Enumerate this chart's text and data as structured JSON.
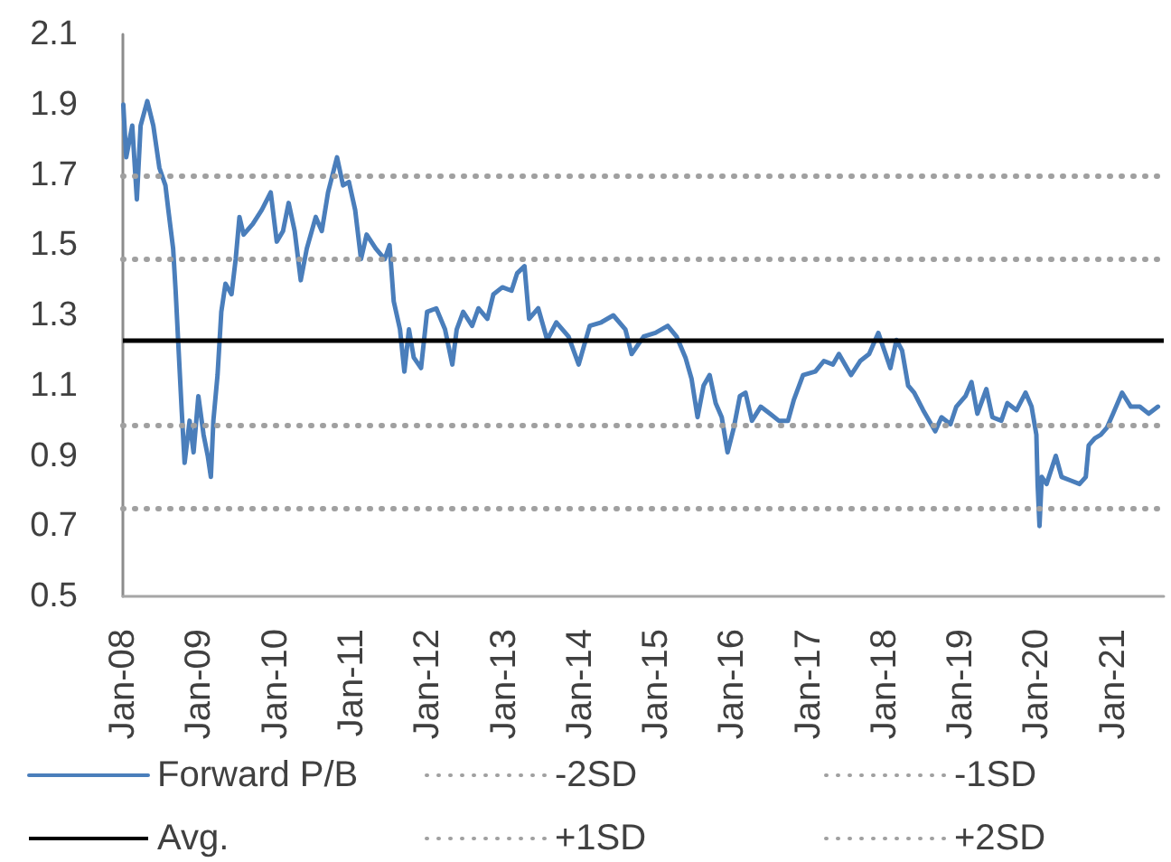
{
  "chart_data": {
    "type": "line",
    "x": [
      "2008-01-03",
      "2008-01-17",
      "2008-02-15",
      "2008-03-08",
      "2008-03-26",
      "2008-04-27",
      "2008-05-26",
      "2008-06-24",
      "2008-07-23",
      "2008-08-06",
      "2008-08-29",
      "2008-09-10",
      "2008-09-27",
      "2008-10-09",
      "2008-10-23",
      "2008-11-16",
      "2008-12-05",
      "2008-12-28",
      "2009-01-22",
      "2009-02-11",
      "2009-02-26",
      "2009-03-10",
      "2009-03-30",
      "2009-04-17",
      "2009-05-07",
      "2009-06-05",
      "2009-06-25",
      "2009-07-13",
      "2009-08-02",
      "2009-09-15",
      "2009-10-28",
      "2009-12-10",
      "2010-01-08",
      "2010-02-07",
      "2010-03-06",
      "2010-04-04",
      "2010-05-03",
      "2010-06-01",
      "2010-07-14",
      "2010-08-12",
      "2010-09-11",
      "2010-10-24",
      "2010-11-22",
      "2010-12-20",
      "2011-01-19",
      "2011-02-16",
      "2011-03-15",
      "2011-04-28",
      "2011-06-10",
      "2011-07-03",
      "2011-07-23",
      "2011-08-22",
      "2011-09-12",
      "2011-10-04",
      "2011-10-27",
      "2011-12-01",
      "2011-12-30",
      "2012-02-12",
      "2012-03-25",
      "2012-04-29",
      "2012-05-20",
      "2012-06-20",
      "2012-08-02",
      "2012-09-01",
      "2012-10-14",
      "2012-11-12",
      "2012-12-25",
      "2013-02-07",
      "2013-03-06",
      "2013-04-10",
      "2013-05-02",
      "2013-06-15",
      "2013-07-28",
      "2013-09-10",
      "2013-11-07",
      "2013-12-26",
      "2014-02-17",
      "2014-04-13",
      "2014-06-10",
      "2014-08-07",
      "2014-09-06",
      "2014-11-03",
      "2014-12-29",
      "2015-02-26",
      "2015-04-09",
      "2015-05-22",
      "2015-06-20",
      "2015-07-19",
      "2015-08-17",
      "2015-09-15",
      "2015-10-14",
      "2015-11-12",
      "2015-12-10",
      "2016-01-09",
      "2016-02-07",
      "2016-03-05",
      "2016-04-05",
      "2016-05-17",
      "2016-06-30",
      "2016-08-12",
      "2016-09-25",
      "2016-10-23",
      "2016-12-06",
      "2017-02-03",
      "2017-03-16",
      "2017-04-28",
      "2017-05-27",
      "2017-07-24",
      "2017-09-06",
      "2017-10-19",
      "2017-12-02",
      "2017-12-31",
      "2018-01-29",
      "2018-02-27",
      "2018-03-26",
      "2018-04-24",
      "2018-05-23",
      "2018-07-05",
      "2018-09-01",
      "2018-10-01",
      "2018-11-13",
      "2018-12-11",
      "2019-01-24",
      "2019-02-22",
      "2019-03-22",
      "2019-05-04",
      "2019-06-02",
      "2019-07-15",
      "2019-08-13",
      "2019-09-26",
      "2019-11-08",
      "2019-12-07",
      "2019-12-30",
      "2020-01-05",
      "2020-01-14",
      "2020-01-25",
      "2020-02-17",
      "2020-04-01",
      "2020-04-29",
      "2020-06-11",
      "2020-07-24",
      "2020-08-23",
      "2020-09-06",
      "2020-10-05",
      "2020-11-03",
      "2020-12-02",
      "2021-01-01",
      "2021-02-13",
      "2021-03-27",
      "2021-05-09",
      "2021-06-21",
      "2021-08-04"
    ],
    "series": [
      {
        "name": "Forward P/B",
        "color": "#4a7ebb",
        "values": [
          1.9,
          1.75,
          1.84,
          1.63,
          1.84,
          1.91,
          1.84,
          1.72,
          1.67,
          1.6,
          1.49,
          1.37,
          1.17,
          1.03,
          0.88,
          1.0,
          0.91,
          1.07,
          0.96,
          0.9,
          0.84,
          1.0,
          1.13,
          1.31,
          1.39,
          1.36,
          1.46,
          1.58,
          1.53,
          1.56,
          1.6,
          1.65,
          1.51,
          1.54,
          1.62,
          1.54,
          1.4,
          1.49,
          1.58,
          1.54,
          1.65,
          1.75,
          1.67,
          1.68,
          1.6,
          1.46,
          1.53,
          1.49,
          1.46,
          1.5,
          1.34,
          1.26,
          1.14,
          1.26,
          1.18,
          1.15,
          1.31,
          1.32,
          1.26,
          1.16,
          1.26,
          1.31,
          1.27,
          1.32,
          1.29,
          1.36,
          1.38,
          1.37,
          1.42,
          1.44,
          1.29,
          1.32,
          1.23,
          1.28,
          1.24,
          1.16,
          1.27,
          1.28,
          1.3,
          1.26,
          1.19,
          1.24,
          1.25,
          1.27,
          1.24,
          1.18,
          1.12,
          1.01,
          1.1,
          1.13,
          1.05,
          1.01,
          0.91,
          0.98,
          1.07,
          1.08,
          1.0,
          1.04,
          1.02,
          1.0,
          1.0,
          1.06,
          1.13,
          1.14,
          1.17,
          1.16,
          1.19,
          1.13,
          1.17,
          1.19,
          1.25,
          1.2,
          1.15,
          1.23,
          1.2,
          1.1,
          1.08,
          1.03,
          0.97,
          1.01,
          0.99,
          1.04,
          1.07,
          1.11,
          1.02,
          1.09,
          1.01,
          1.0,
          1.05,
          1.03,
          1.08,
          1.04,
          0.96,
          0.82,
          0.7,
          0.84,
          0.82,
          0.9,
          0.84,
          0.83,
          0.82,
          0.84,
          0.93,
          0.95,
          0.96,
          0.98,
          1.02,
          1.08,
          1.04,
          1.04,
          1.02,
          1.04
        ]
      }
    ],
    "xlim": [
      "2008-01-01",
      "2021-09-01"
    ],
    "xticks": [
      {
        "value": "2008-01-01",
        "label": "Jan-08"
      },
      {
        "value": "2009-01-01",
        "label": "Jan-09"
      },
      {
        "value": "2010-01-01",
        "label": "Jan-10"
      },
      {
        "value": "2011-01-01",
        "label": "Jan-11"
      },
      {
        "value": "2012-01-01",
        "label": "Jan-12"
      },
      {
        "value": "2013-01-01",
        "label": "Jan-13"
      },
      {
        "value": "2014-01-01",
        "label": "Jan-14"
      },
      {
        "value": "2015-01-01",
        "label": "Jan-15"
      },
      {
        "value": "2016-01-01",
        "label": "Jan-16"
      },
      {
        "value": "2017-01-01",
        "label": "Jan-17"
      },
      {
        "value": "2018-01-01",
        "label": "Jan-18"
      },
      {
        "value": "2019-01-01",
        "label": "Jan-19"
      },
      {
        "value": "2020-01-01",
        "label": "Jan-20"
      },
      {
        "value": "2021-01-01",
        "label": "Jan-21"
      }
    ],
    "ylim": [
      0.5,
      2.1
    ],
    "yticks": [
      0.5,
      0.7,
      0.9,
      1.1,
      1.3,
      1.5,
      1.7,
      1.9,
      2.1
    ],
    "ref_lines": [
      {
        "axis": "y",
        "value": 0.75,
        "label": "-2SD",
        "color": "#a0a0a0",
        "line_style": "dotted"
      },
      {
        "axis": "y",
        "value": 0.99,
        "label": "-1SD",
        "color": "#a0a0a0",
        "line_style": "dotted"
      },
      {
        "axis": "y",
        "value": 1.23,
        "label": "Avg.",
        "color": "#000000",
        "line_style": "solid"
      },
      {
        "axis": "y",
        "value": 1.46,
        "label": "+1SD",
        "color": "#a0a0a0",
        "line_style": "dotted"
      },
      {
        "axis": "y",
        "value": 1.7,
        "label": "+2SD",
        "color": "#a0a0a0",
        "line_style": "dotted"
      }
    ],
    "legend": "bottom",
    "marker": "none"
  }
}
